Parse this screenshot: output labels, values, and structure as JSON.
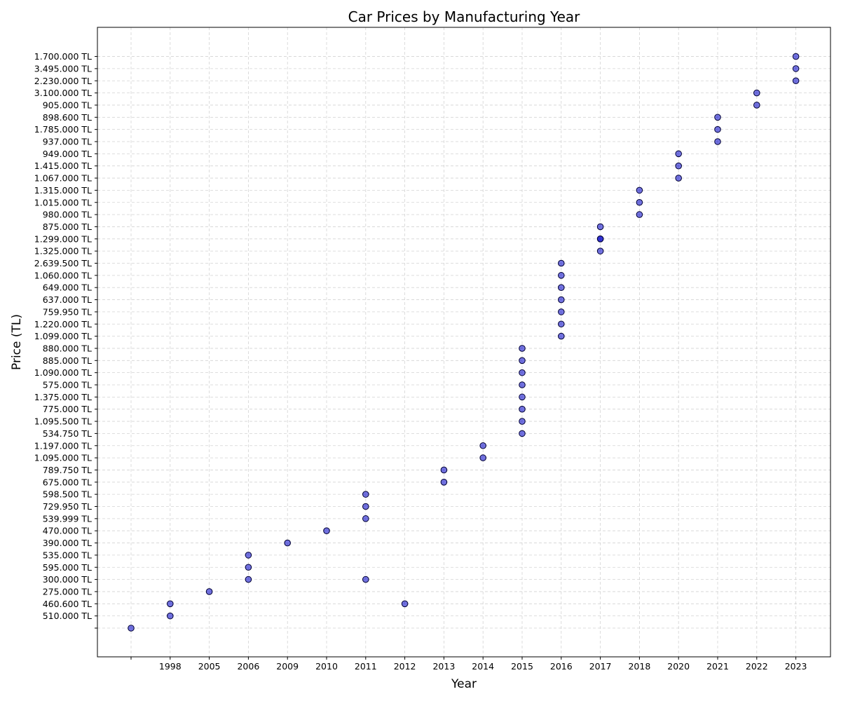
{
  "chart_data": {
    "type": "scatter",
    "title": "Car Prices by Manufacturing Year",
    "xlabel": "Year",
    "ylabel": "Price (TL)",
    "grid": true,
    "x_categories": [
      "",
      "1998",
      "2005",
      "2006",
      "2009",
      "2010",
      "2011",
      "2012",
      "2013",
      "2014",
      "2015",
      "2016",
      "2017",
      "2018",
      "2020",
      "2021",
      "2022",
      "2023"
    ],
    "y_categories": [
      "",
      "510.000 TL",
      "460.600 TL",
      "275.000 TL",
      "300.000 TL",
      "595.000 TL",
      "535.000 TL",
      "390.000 TL",
      "470.000 TL",
      "539.999 TL",
      "729.950 TL",
      "598.500 TL",
      "675.000 TL",
      "789.750 TL",
      "1.095.000 TL",
      "1.197.000 TL",
      "534.750 TL",
      "1.095.500 TL",
      "775.000 TL",
      "1.375.000 TL",
      "575.000 TL",
      "1.090.000 TL",
      "885.000 TL",
      "880.000 TL",
      "1.099.000 TL",
      "1.220.000 TL",
      "759.950 TL",
      "637.000 TL",
      "649.000 TL",
      "1.060.000 TL",
      "2.639.500 TL",
      "1.325.000 TL",
      "1.299.000 TL",
      "875.000 TL",
      "980.000 TL",
      "1.015.000 TL",
      "1.315.000 TL",
      "1.067.000 TL",
      "1.415.000 TL",
      "949.000 TL",
      "937.000 TL",
      "1.785.000 TL",
      "898.600 TL",
      "905.000 TL",
      "3.100.000 TL",
      "2.230.000 TL",
      "3.495.000 TL",
      "1.700.000 TL"
    ],
    "points": [
      {
        "x": "",
        "y": ""
      },
      {
        "x": "1998",
        "y": "510.000 TL"
      },
      {
        "x": "1998",
        "y": "460.600 TL"
      },
      {
        "x": "2012",
        "y": "460.600 TL"
      },
      {
        "x": "2005",
        "y": "275.000 TL"
      },
      {
        "x": "2006",
        "y": "300.000 TL"
      },
      {
        "x": "2011",
        "y": "300.000 TL"
      },
      {
        "x": "2006",
        "y": "595.000 TL"
      },
      {
        "x": "2006",
        "y": "535.000 TL"
      },
      {
        "x": "2009",
        "y": "390.000 TL"
      },
      {
        "x": "2010",
        "y": "470.000 TL"
      },
      {
        "x": "2011",
        "y": "539.999 TL"
      },
      {
        "x": "2011",
        "y": "729.950 TL"
      },
      {
        "x": "2011",
        "y": "598.500 TL"
      },
      {
        "x": "2013",
        "y": "675.000 TL"
      },
      {
        "x": "2013",
        "y": "789.750 TL"
      },
      {
        "x": "2014",
        "y": "1.095.000 TL"
      },
      {
        "x": "2014",
        "y": "1.197.000 TL"
      },
      {
        "x": "2015",
        "y": "534.750 TL"
      },
      {
        "x": "2015",
        "y": "1.095.500 TL"
      },
      {
        "x": "2015",
        "y": "775.000 TL"
      },
      {
        "x": "2015",
        "y": "1.375.000 TL"
      },
      {
        "x": "2015",
        "y": "575.000 TL"
      },
      {
        "x": "2015",
        "y": "1.090.000 TL"
      },
      {
        "x": "2015",
        "y": "885.000 TL"
      },
      {
        "x": "2015",
        "y": "880.000 TL"
      },
      {
        "x": "2016",
        "y": "1.099.000 TL"
      },
      {
        "x": "2016",
        "y": "1.220.000 TL"
      },
      {
        "x": "2016",
        "y": "759.950 TL"
      },
      {
        "x": "2016",
        "y": "637.000 TL"
      },
      {
        "x": "2016",
        "y": "649.000 TL"
      },
      {
        "x": "2016",
        "y": "1.060.000 TL"
      },
      {
        "x": "2016",
        "y": "2.639.500 TL"
      },
      {
        "x": "2017",
        "y": "1.325.000 TL"
      },
      {
        "x": "2017",
        "y": "1.299.000 TL"
      },
      {
        "x": "2017",
        "y": "1.299.000 TL"
      },
      {
        "x": "2017",
        "y": "875.000 TL"
      },
      {
        "x": "2018",
        "y": "980.000 TL"
      },
      {
        "x": "2018",
        "y": "1.015.000 TL"
      },
      {
        "x": "2018",
        "y": "1.315.000 TL"
      },
      {
        "x": "2020",
        "y": "1.067.000 TL"
      },
      {
        "x": "2020",
        "y": "1.415.000 TL"
      },
      {
        "x": "2020",
        "y": "949.000 TL"
      },
      {
        "x": "2021",
        "y": "937.000 TL"
      },
      {
        "x": "2021",
        "y": "1.785.000 TL"
      },
      {
        "x": "2021",
        "y": "898.600 TL"
      },
      {
        "x": "2022",
        "y": "905.000 TL"
      },
      {
        "x": "2022",
        "y": "3.100.000 TL"
      },
      {
        "x": "2023",
        "y": "2.230.000 TL"
      },
      {
        "x": "2023",
        "y": "3.495.000 TL"
      },
      {
        "x": "2023",
        "y": "1.700.000 TL"
      }
    ],
    "point_color": "#0000c8",
    "point_edge_color": "#000033"
  }
}
